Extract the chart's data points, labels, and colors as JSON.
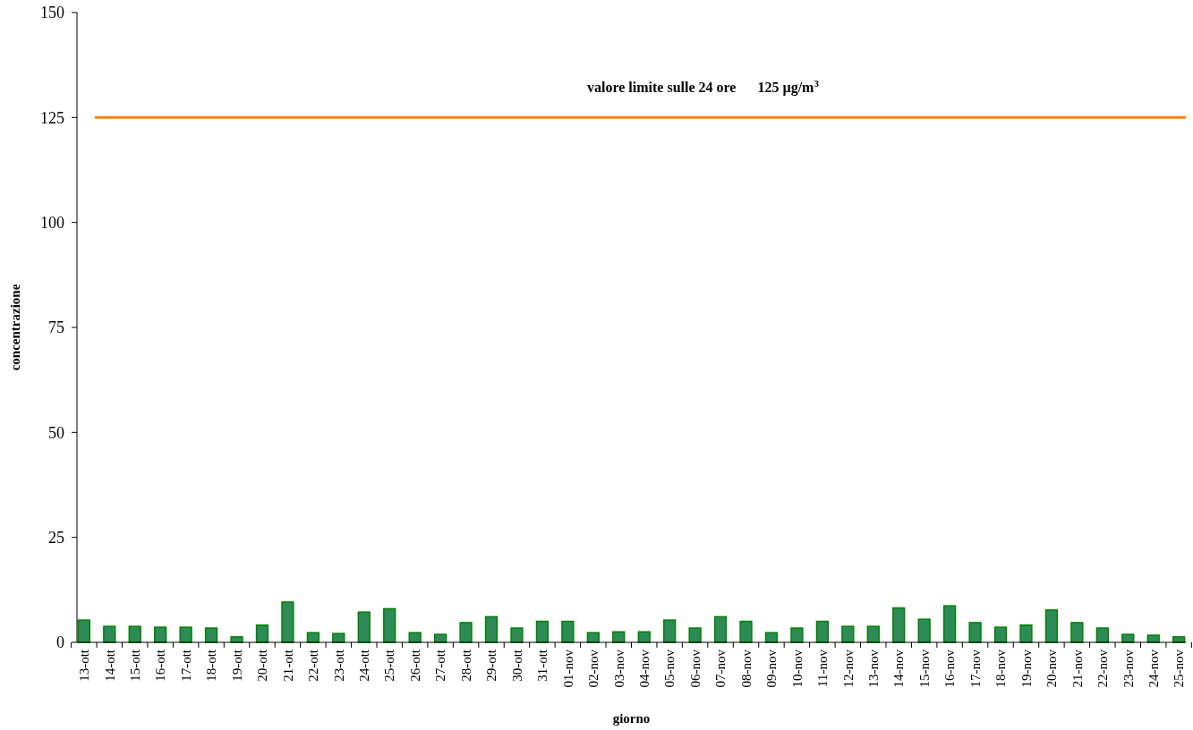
{
  "chart_data": {
    "type": "bar",
    "xlabel": "giorno",
    "ylabel": "concentrazione",
    "categories": [
      "13-ott",
      "14-ott",
      "15-ott",
      "16-ott",
      "17-ott",
      "18-ott",
      "19-ott",
      "20-ott",
      "21-ott",
      "22-ott",
      "23-ott",
      "24-ott",
      "25-ott",
      "26-ott",
      "27-ott",
      "28-ott",
      "29-ott",
      "30-ott",
      "31-ott",
      "01-nov",
      "02-nov",
      "03-nov",
      "04-nov",
      "05-nov",
      "06-nov",
      "07-nov",
      "08-nov",
      "09-nov",
      "10-nov",
      "11-nov",
      "12-nov",
      "13-nov",
      "14-nov",
      "15-nov",
      "16-nov",
      "17-nov",
      "18-nov",
      "19-nov",
      "20-nov",
      "21-nov",
      "22-nov",
      "23-nov",
      "24-nov",
      "25-nov"
    ],
    "values": [
      5.3,
      3.8,
      3.8,
      3.6,
      3.6,
      3.4,
      1.3,
      4.1,
      9.6,
      2.3,
      2.1,
      7.2,
      8.0,
      2.3,
      1.9,
      4.7,
      6.1,
      3.4,
      5.0,
      5.0,
      2.3,
      2.5,
      2.5,
      5.3,
      3.4,
      6.1,
      5.0,
      2.3,
      3.4,
      5.0,
      3.8,
      3.8,
      8.2,
      5.5,
      8.7,
      4.7,
      3.6,
      4.1,
      7.7,
      4.7,
      3.4,
      1.9,
      1.7,
      1.3
    ],
    "color": "#2e8b57",
    "ylim": [
      0,
      150
    ],
    "yticks": [
      0,
      25,
      50,
      75,
      100,
      125,
      150
    ],
    "ref_lines": [
      {
        "axis": "y",
        "value": 125,
        "label": "valore limite sulle 24 ore      125 µg/m$^{3}$",
        "color": "#ff7f0e"
      }
    ],
    "grid": false
  }
}
